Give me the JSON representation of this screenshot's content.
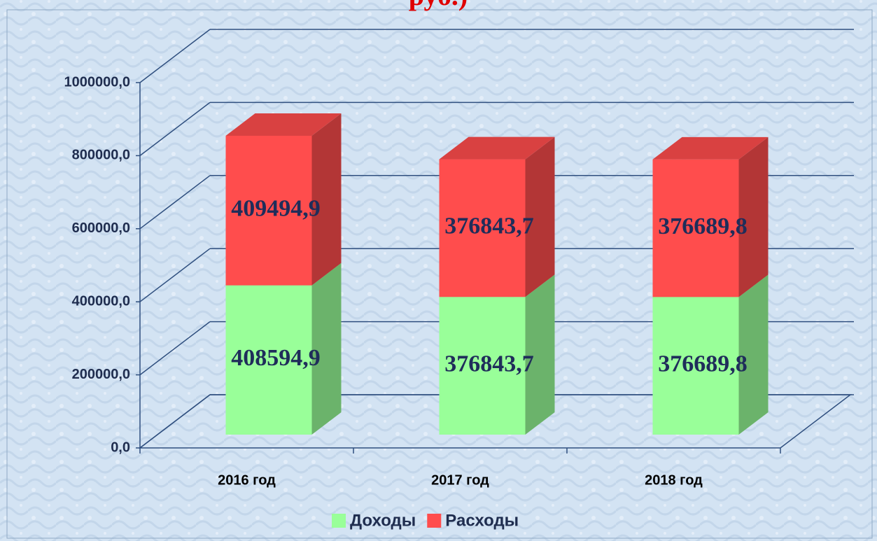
{
  "chart_data": {
    "type": "bar3d_stacked",
    "title": "руб.)",
    "categories": [
      "2016 год",
      "2017 год",
      "2018 год"
    ],
    "series": [
      {
        "name": "Доходы",
        "color": "#99ff99",
        "values": [
          408594.9,
          376843.7,
          376689.8
        ],
        "value_labels": [
          "408594,9",
          "376843,7",
          "376689,8"
        ]
      },
      {
        "name": "Расходы",
        "color": "#ff4d4d",
        "values": [
          409494.9,
          376843.7,
          376689.8
        ],
        "value_labels": [
          "409494,9",
          "376843,7",
          "376689,8"
        ]
      }
    ],
    "ylim": [
      0,
      1000000
    ],
    "yticks": [
      {
        "value": 0,
        "label": "0,0"
      },
      {
        "value": 200000,
        "label": "200000,0"
      },
      {
        "value": 400000,
        "label": "400000,0"
      },
      {
        "value": 600000,
        "label": "600000,0"
      },
      {
        "value": 800000,
        "label": "800000,0"
      },
      {
        "value": 1000000,
        "label": "1000000,0"
      }
    ],
    "grid": true,
    "legend": "bottom"
  }
}
